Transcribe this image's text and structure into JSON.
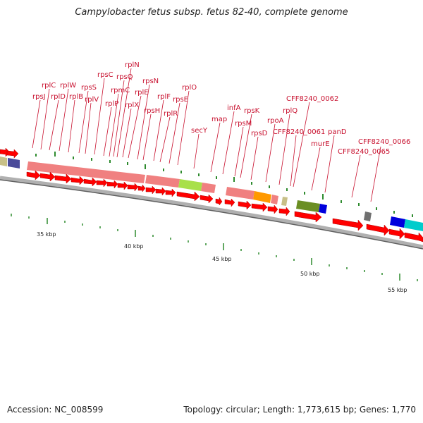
{
  "title": "Campylobacter fetus subsp. fetus 82-40, complete genome",
  "footer": {
    "accession": "Accession: NC_008599",
    "topology": "Topology: circular; Length: 1,773,615 bp; Genes: 1,770"
  },
  "scale_labels": [
    "35 kbp",
    "40 kbp",
    "45 kbp",
    "50 kbp",
    "55 kbp"
  ],
  "gene_labels": [
    "rpsJ",
    "rplC",
    "rplD",
    "rplW",
    "rplB",
    "rpsS",
    "rplV",
    "rpsC",
    "rplP",
    "rpmC",
    "rpsQ",
    "rplN",
    "rplX",
    "rplE",
    "rpsN",
    "rpsH",
    "rplF",
    "rplR",
    "rpsE",
    "rplO",
    "secY",
    "map",
    "infA",
    "rpsM",
    "rpsK",
    "rpsD",
    "rpoA",
    "rplQ",
    "CFF8240_0062",
    "CFF8240_0061",
    "murE",
    "panD",
    "CFF8240_0065",
    "CFF8240_0066"
  ],
  "colors": {
    "gene_arrow": "#ff0000",
    "label": "#c8102e",
    "tick": "#2e8b2e",
    "ribosomal_block": "#f08080",
    "secY_block": "#a8e04a",
    "rpoA_block": "#ff9900",
    "murE_block": "#6b8e23",
    "blue_block": "#0000dd",
    "cyan_block": "#00cccc",
    "khaki_block": "#c8c088",
    "slate_block": "#4a4a9a",
    "gray_block": "#707070",
    "backbone": "#909090"
  }
}
